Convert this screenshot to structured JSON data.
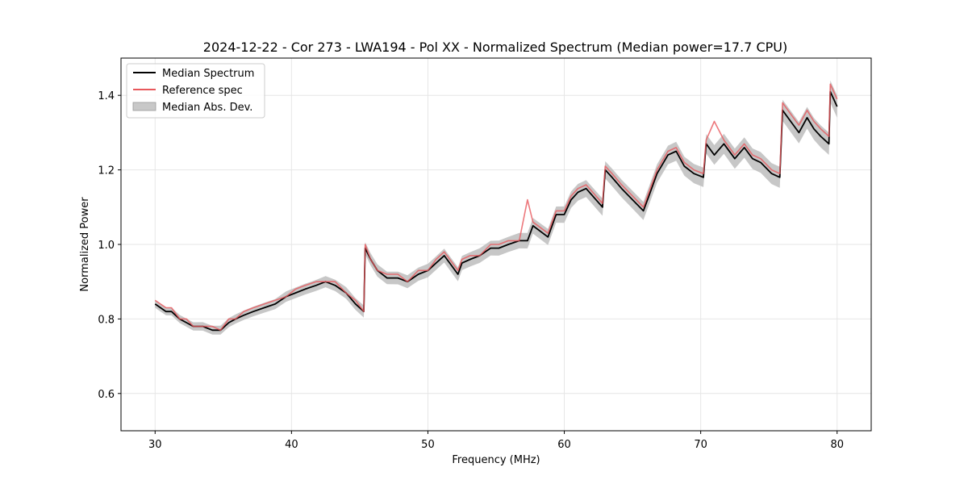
{
  "chart_data": {
    "type": "line",
    "title": "2024-12-22 - Cor 273 - LWA194 - Pol XX - Normalized Spectrum (Median power=17.7 CPU)",
    "xlabel": "Frequency (MHz)",
    "ylabel": "Normalized Power",
    "xlim": [
      27.5,
      82.5
    ],
    "ylim": [
      0.5,
      1.5
    ],
    "xticks": [
      30,
      40,
      50,
      60,
      70,
      80
    ],
    "yticks": [
      0.6,
      0.8,
      1.0,
      1.2,
      1.4
    ],
    "xtick_labels": [
      "30",
      "40",
      "50",
      "60",
      "70",
      "80"
    ],
    "ytick_labels": [
      "0.6",
      "0.8",
      "1.0",
      "1.2",
      "1.4"
    ],
    "grid": true,
    "legend_position": "upper-left",
    "legend": [
      {
        "name": "Median Spectrum",
        "kind": "line",
        "color": "#000000"
      },
      {
        "name": "Reference spec",
        "kind": "line",
        "color": "#e8585c"
      },
      {
        "name": "Median Abs. Dev.",
        "kind": "band",
        "color": "#bdbdbd"
      }
    ],
    "series": [
      {
        "name": "Median Spectrum",
        "color": "#000000",
        "x": [
          30.0,
          30.4,
          30.8,
          31.2,
          31.8,
          32.3,
          32.8,
          33.5,
          34.2,
          34.8,
          35.4,
          35.9,
          36.5,
          37.2,
          38.0,
          38.8,
          39.6,
          40.3,
          41.0,
          41.8,
          42.5,
          43.2,
          44.0,
          44.7,
          45.3,
          45.4,
          45.8,
          46.3,
          47.0,
          47.8,
          48.5,
          49.3,
          50.0,
          50.6,
          51.2,
          52.2,
          52.5,
          53.1,
          53.8,
          54.6,
          55.2,
          55.9,
          56.7,
          57.3,
          57.7,
          58.8,
          59.4,
          60.0,
          60.5,
          61.0,
          61.6,
          62.8,
          63.0,
          63.5,
          64.2,
          65.0,
          65.8,
          66.2,
          66.8,
          67.6,
          68.2,
          68.8,
          69.5,
          70.2,
          70.4,
          71.0,
          71.7,
          72.5,
          73.2,
          73.8,
          74.4,
          75.2,
          75.8,
          76.0,
          76.6,
          77.2,
          77.8,
          78.3,
          78.8,
          79.4,
          79.5,
          80.0
        ],
        "y": [
          0.84,
          0.83,
          0.82,
          0.82,
          0.8,
          0.79,
          0.78,
          0.78,
          0.77,
          0.77,
          0.79,
          0.8,
          0.81,
          0.82,
          0.83,
          0.84,
          0.86,
          0.87,
          0.88,
          0.89,
          0.9,
          0.89,
          0.87,
          0.84,
          0.82,
          0.99,
          0.96,
          0.93,
          0.91,
          0.91,
          0.9,
          0.92,
          0.93,
          0.95,
          0.97,
          0.92,
          0.95,
          0.96,
          0.97,
          0.99,
          0.99,
          1.0,
          1.01,
          1.01,
          1.05,
          1.02,
          1.08,
          1.08,
          1.12,
          1.14,
          1.15,
          1.1,
          1.2,
          1.18,
          1.15,
          1.12,
          1.09,
          1.13,
          1.19,
          1.24,
          1.25,
          1.21,
          1.19,
          1.18,
          1.27,
          1.24,
          1.27,
          1.23,
          1.26,
          1.23,
          1.22,
          1.19,
          1.18,
          1.36,
          1.33,
          1.3,
          1.34,
          1.31,
          1.29,
          1.27,
          1.41,
          1.37
        ]
      },
      {
        "name": "Reference spec",
        "color": "#e8585c",
        "x": [
          30.0,
          30.4,
          30.8,
          31.2,
          31.8,
          32.3,
          32.8,
          33.5,
          34.2,
          34.8,
          35.4,
          35.9,
          36.5,
          37.2,
          38.0,
          38.8,
          39.6,
          40.3,
          41.0,
          41.8,
          42.5,
          43.2,
          44.0,
          44.7,
          45.3,
          45.4,
          45.8,
          46.3,
          47.0,
          47.8,
          48.5,
          49.3,
          50.0,
          50.6,
          51.2,
          52.2,
          52.5,
          53.1,
          53.8,
          54.6,
          55.2,
          55.9,
          56.7,
          57.3,
          57.7,
          58.8,
          59.4,
          60.0,
          60.5,
          61.0,
          61.6,
          62.8,
          63.0,
          63.5,
          64.2,
          65.0,
          65.8,
          66.2,
          66.8,
          67.6,
          68.2,
          68.8,
          69.5,
          70.2,
          70.4,
          71.0,
          71.7,
          72.5,
          73.2,
          73.8,
          74.4,
          75.2,
          75.8,
          76.0,
          76.6,
          77.2,
          77.8,
          78.3,
          78.8,
          79.4,
          79.5,
          80.0
        ],
        "y": [
          0.85,
          0.84,
          0.83,
          0.83,
          0.8,
          0.8,
          0.78,
          0.78,
          0.78,
          0.77,
          0.8,
          0.8,
          0.82,
          0.83,
          0.84,
          0.85,
          0.86,
          0.88,
          0.89,
          0.9,
          0.9,
          0.9,
          0.87,
          0.85,
          0.82,
          1.0,
          0.96,
          0.93,
          0.92,
          0.92,
          0.9,
          0.93,
          0.93,
          0.96,
          0.98,
          0.93,
          0.96,
          0.97,
          0.97,
          1.0,
          1.0,
          1.01,
          1.01,
          1.12,
          1.06,
          1.03,
          1.09,
          1.09,
          1.13,
          1.15,
          1.16,
          1.11,
          1.21,
          1.19,
          1.16,
          1.13,
          1.1,
          1.14,
          1.2,
          1.25,
          1.26,
          1.22,
          1.2,
          1.19,
          1.28,
          1.33,
          1.28,
          1.24,
          1.27,
          1.24,
          1.23,
          1.2,
          1.19,
          1.38,
          1.35,
          1.32,
          1.36,
          1.33,
          1.31,
          1.29,
          1.43,
          1.39
        ]
      }
    ],
    "band": {
      "name": "Median Abs. Dev.",
      "color": "#bdbdbd",
      "half_width_start": 0.01,
      "half_width_end": 0.03
    }
  }
}
